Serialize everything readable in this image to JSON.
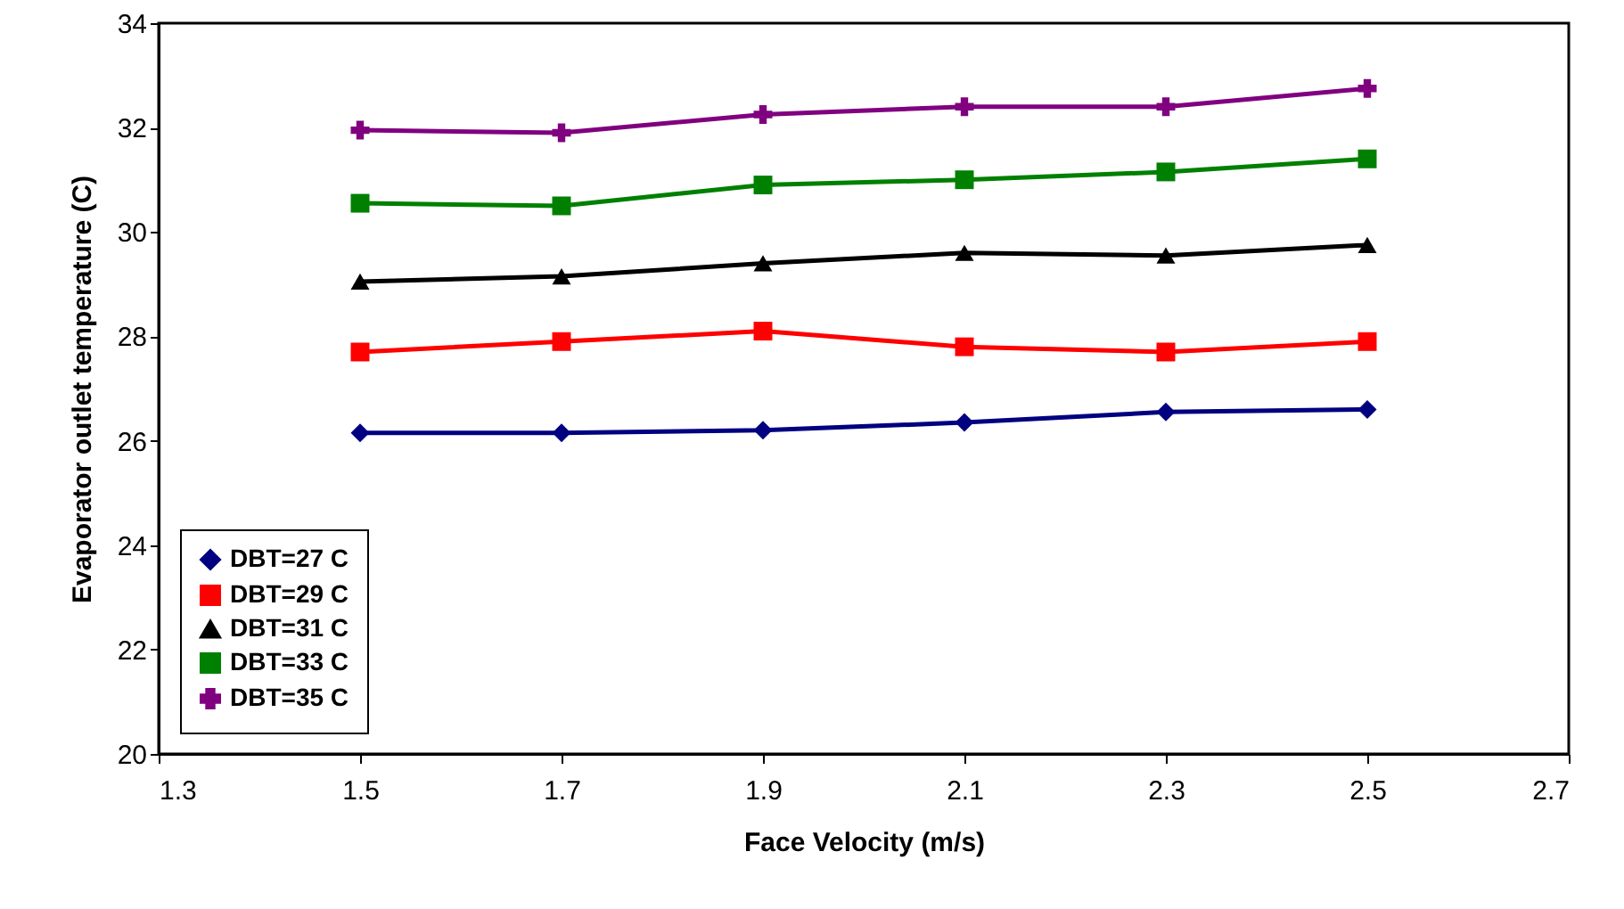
{
  "chart_data": {
    "type": "line",
    "xlabel": "Face Velocity (m/s)",
    "ylabel": "Evaporator outlet temperature (C)",
    "x": [
      1.5,
      1.7,
      1.9,
      2.1,
      2.3,
      2.5
    ],
    "xlim": [
      1.3,
      2.7
    ],
    "xticks": [
      1.3,
      1.5,
      1.7,
      1.9,
      2.1,
      2.3,
      2.5,
      2.7
    ],
    "ylim": [
      20,
      34
    ],
    "yticks": [
      20,
      22,
      24,
      26,
      28,
      30,
      32,
      34
    ],
    "legend": "bottom left",
    "line_style": "solid",
    "grid": false,
    "series": [
      {
        "name": "DBT=27 C",
        "color": "#000080",
        "marker": "diamond",
        "values": [
          26.15,
          26.15,
          26.2,
          26.35,
          26.55,
          26.6
        ]
      },
      {
        "name": "DBT=29 C",
        "color": "#ff0000",
        "marker": "square",
        "values": [
          27.7,
          27.9,
          28.1,
          27.8,
          27.7,
          27.9
        ]
      },
      {
        "name": "DBT=31 C",
        "color": "#000000",
        "marker": "triangle",
        "values": [
          29.05,
          29.15,
          29.4,
          29.6,
          29.55,
          29.75
        ]
      },
      {
        "name": "DBT=33 C",
        "color": "#008000",
        "marker": "square",
        "values": [
          30.55,
          30.5,
          30.9,
          31.0,
          31.15,
          31.4
        ]
      },
      {
        "name": "DBT=35 C",
        "color": "#800080",
        "marker": "cross",
        "values": [
          31.95,
          31.9,
          32.25,
          32.4,
          32.4,
          32.75
        ]
      }
    ]
  }
}
